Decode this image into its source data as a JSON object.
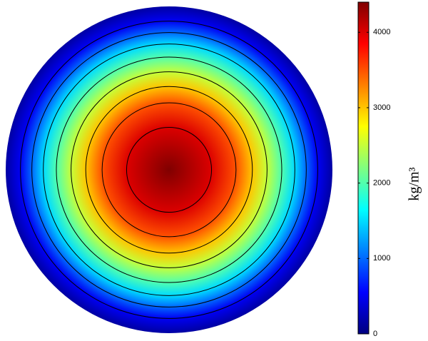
{
  "chart_data": {
    "type": "contour",
    "x": [
      0,
      0.26,
      0.41,
      0.51,
      0.6,
      0.69,
      0.77,
      0.84,
      0.91,
      1.0
    ],
    "values": [
      4400,
      4000,
      3500,
      3000,
      2500,
      2000,
      1500,
      1000,
      500,
      150
    ],
    "levels": [
      4000,
      3500,
      3000,
      2500,
      2000,
      1500,
      1000,
      500
    ],
    "colormap": "jet",
    "contour_color": "#000000",
    "colorbar_label": "kg/m³",
    "zlim": [
      0,
      4400
    ],
    "zticks": [
      0,
      1000,
      2000,
      3000,
      4000
    ]
  }
}
